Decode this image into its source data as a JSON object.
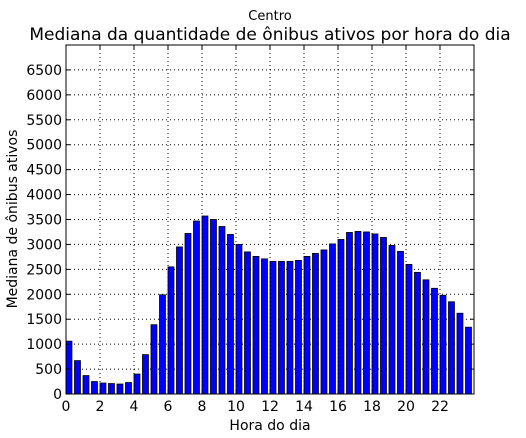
{
  "chart_data": {
    "type": "bar",
    "subtitle": "Centro",
    "title": "Mediana da quantidade de ônibus ativos por hora do dia",
    "xlabel": "Hora do dia",
    "ylabel": "Mediana de ônibus ativos",
    "xlim": [
      0,
      24
    ],
    "ylim": [
      0,
      7000
    ],
    "xticks": [
      0,
      2,
      4,
      6,
      8,
      10,
      12,
      14,
      16,
      18,
      20,
      22
    ],
    "yticks": [
      0,
      500,
      1000,
      1500,
      2000,
      2500,
      3000,
      3500,
      4000,
      4500,
      5000,
      5500,
      6000,
      6500
    ],
    "grid": true,
    "bar_width": 0.35,
    "bar_color": "#0000ff",
    "x": [
      0.0,
      0.5,
      1.0,
      1.5,
      2.0,
      2.5,
      3.0,
      3.5,
      4.0,
      4.5,
      5.0,
      5.5,
      6.0,
      6.5,
      7.0,
      7.5,
      8.0,
      8.5,
      9.0,
      9.5,
      10.0,
      10.5,
      11.0,
      11.5,
      12.0,
      12.5,
      13.0,
      13.5,
      14.0,
      14.5,
      15.0,
      15.5,
      16.0,
      16.5,
      17.0,
      17.5,
      18.0,
      18.5,
      19.0,
      19.5,
      20.0,
      20.5,
      21.0,
      21.5,
      22.0,
      22.5,
      23.0,
      23.5
    ],
    "values": [
      1060,
      670,
      370,
      250,
      220,
      210,
      200,
      230,
      400,
      790,
      1390,
      1990,
      2550,
      2950,
      3220,
      3470,
      3570,
      3500,
      3360,
      3200,
      3000,
      2850,
      2760,
      2710,
      2660,
      2660,
      2660,
      2680,
      2760,
      2820,
      2890,
      3010,
      3100,
      3240,
      3260,
      3250,
      3210,
      3140,
      2980,
      2860,
      2600,
      2440,
      2290,
      2120,
      1980,
      1850,
      1620,
      1340
    ]
  }
}
